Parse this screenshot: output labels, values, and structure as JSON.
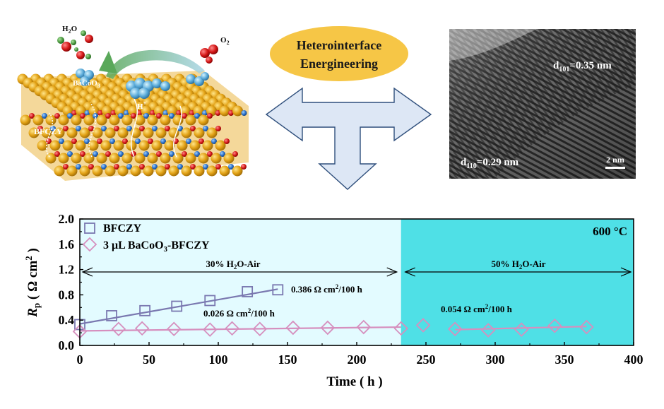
{
  "colors": {
    "left_panel": "#e3fbff",
    "right_panel": "#4fe0e6",
    "bfczy": "#7a78b0",
    "ba_bfczy": "#d68fbe",
    "arrow_fill": "#dde7f5",
    "arrow_stroke": "#2f4f7c",
    "ellipse": "#f6c646"
  },
  "top": {
    "ellipse_line1": "Heterointerface",
    "ellipse_line2": "Energineering",
    "lattice": {
      "h2o_main": "H",
      "h2o_sub": "2",
      "h2o_tail": "O",
      "o2_main": "O",
      "o2_sub": "2",
      "bacoo": "BaCoO",
      "bacoo_sub": "3",
      "proton": "H",
      "proton_sup": "+",
      "bfczy": "BFCZY"
    },
    "tem": {
      "d101_prefix": "d",
      "d101_sub": "101",
      "d101_value": "=0.35 nm",
      "d110_prefix": "d",
      "d110_sub": "110",
      "d110_value": "=0.29 nm",
      "scale": "2 nm"
    }
  },
  "chart_data": {
    "type": "scatter",
    "xlabel": "Time ( h )",
    "ylabel_main": "R",
    "ylabel_sub": "p",
    "ylabel_rest": " ( Ω cm",
    "ylabel_sup": "2",
    "ylabel_end": " )",
    "xlim": [
      0,
      400
    ],
    "ylim": [
      0.0,
      2.0
    ],
    "xticks": [
      0,
      50,
      100,
      150,
      200,
      250,
      300,
      350,
      400
    ],
    "yticks": [
      0.0,
      0.4,
      0.8,
      1.2,
      1.6,
      2.0
    ],
    "ytick_labels": [
      "0.0",
      "0.4",
      "0.8",
      "1.2",
      "1.6",
      "2.0"
    ],
    "temperature_label": "600 °C",
    "regions": [
      {
        "label_main": "30% H",
        "label_sub": "2",
        "label_rest": "O-Air",
        "x_range": [
          0,
          232
        ]
      },
      {
        "label_main": "50% H",
        "label_sub": "2",
        "label_rest": "O-Air",
        "x_range": [
          232,
          400
        ]
      }
    ],
    "series": [
      {
        "name": "BFCZY",
        "marker": "square",
        "x": [
          0,
          23,
          47,
          70,
          94,
          121,
          143
        ],
        "y": [
          0.33,
          0.47,
          0.55,
          0.62,
          0.71,
          0.85,
          0.88
        ],
        "fit": {
          "x": [
            0,
            143
          ],
          "y": [
            0.34,
            0.89
          ]
        },
        "annotation_main": "0.386 Ω cm",
        "annotation_sup": "2",
        "annotation_rest": "/100 h"
      },
      {
        "name_prefix": "3 μL BaCoO",
        "name_sub": "3",
        "name_suffix": "-BFCZY",
        "marker": "diamond",
        "x": [
          0,
          28,
          45,
          68,
          94,
          110,
          130,
          154,
          179,
          205,
          232,
          248,
          271,
          295,
          319,
          343,
          366
        ],
        "y": [
          0.22,
          0.26,
          0.27,
          0.26,
          0.25,
          0.27,
          0.26,
          0.28,
          0.28,
          0.29,
          0.27,
          0.32,
          0.26,
          0.24,
          0.25,
          0.31,
          0.29
        ],
        "fit_segments": [
          {
            "x": [
              0,
              232
            ],
            "y": [
              0.23,
              0.29
            ]
          },
          {
            "x": [
              271,
              366
            ],
            "y": [
              0.25,
              0.3
            ]
          }
        ],
        "annotations": [
          {
            "main": "0.026 Ω cm",
            "sup": "2",
            "rest": "/100 h"
          },
          {
            "main": "0.054 Ω cm",
            "sup": "2",
            "rest": "/100 h"
          }
        ]
      }
    ]
  }
}
